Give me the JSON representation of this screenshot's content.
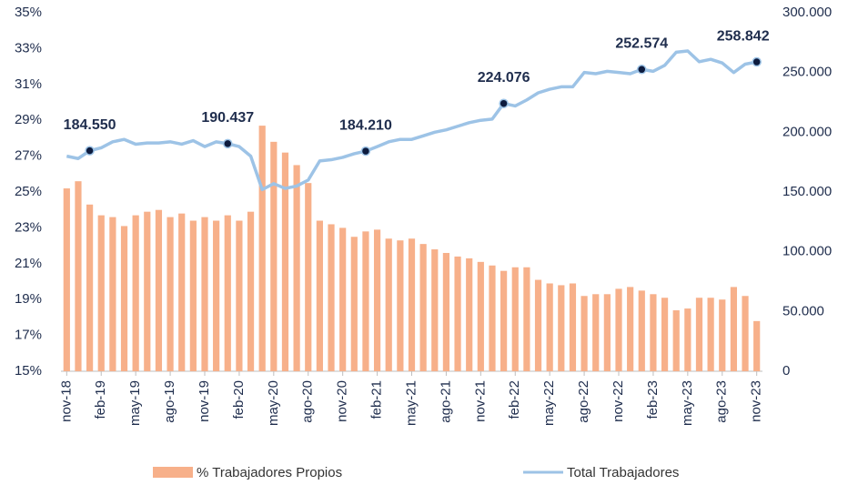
{
  "chart_data": {
    "type": "bar-line",
    "categories": [
      "nov-18",
      null,
      null,
      "feb-19",
      null,
      null,
      "may-19",
      null,
      null,
      "ago-19",
      null,
      null,
      "nov-19",
      null,
      null,
      "feb-20",
      null,
      null,
      "may-20",
      null,
      null,
      "ago-20",
      null,
      null,
      "nov-20",
      null,
      null,
      "feb-21",
      null,
      null,
      "may-21",
      null,
      null,
      "ago-21",
      null,
      null,
      "nov-21",
      null,
      null,
      "feb-22",
      null,
      null,
      "may-22",
      null,
      null,
      "ago-22",
      null,
      null,
      "nov-22",
      null,
      null,
      "feb-23",
      null,
      null,
      "may-23",
      null,
      null,
      "ago-23",
      null,
      null,
      "nov-23"
    ],
    "series": [
      {
        "name": "% Trabajadores Propios",
        "type": "bar",
        "color": "#f7b08a",
        "values": [
          25.2,
          25.6,
          24.3,
          23.7,
          23.6,
          23.1,
          23.7,
          23.9,
          24.0,
          23.6,
          23.8,
          23.4,
          23.6,
          23.4,
          23.7,
          23.4,
          23.9,
          28.7,
          27.8,
          27.2,
          26.5,
          25.5,
          23.4,
          23.2,
          23.0,
          22.5,
          22.8,
          22.9,
          22.4,
          22.3,
          22.4,
          22.1,
          21.8,
          21.6,
          21.4,
          21.3,
          21.1,
          20.9,
          20.6,
          20.8,
          20.8,
          20.1,
          19.9,
          19.8,
          19.9,
          19.2,
          19.3,
          19.3,
          19.6,
          19.7,
          19.5,
          19.3,
          19.1,
          18.4,
          18.5,
          19.1,
          19.1,
          19.0,
          19.7,
          19.2,
          17.8
        ]
      },
      {
        "name": "Total Trabajadores",
        "type": "line",
        "axis": "y2",
        "color": "#9dc3e6",
        "values": [
          180000,
          178000,
          184550,
          187000,
          192000,
          194000,
          190000,
          191000,
          191000,
          192000,
          190000,
          193000,
          188000,
          192000,
          190437,
          188000,
          180000,
          152000,
          157000,
          153000,
          155000,
          160000,
          176000,
          177000,
          179000,
          182000,
          184210,
          188000,
          192000,
          194000,
          194000,
          197000,
          200000,
          202000,
          205000,
          208000,
          210000,
          211000,
          224076,
          222000,
          227000,
          233000,
          236000,
          238000,
          238000,
          250000,
          249000,
          251000,
          250000,
          249000,
          252574,
          251000,
          256000,
          267000,
          268000,
          259000,
          261000,
          258000,
          250000,
          257000,
          258842
        ],
        "value_labels": [
          null,
          null,
          "184.550",
          null,
          null,
          null,
          null,
          null,
          null,
          null,
          null,
          null,
          null,
          null,
          "190.437",
          null,
          null,
          null,
          null,
          null,
          null,
          null,
          null,
          null,
          null,
          null,
          "184.210",
          null,
          null,
          null,
          null,
          null,
          null,
          null,
          null,
          null,
          null,
          null,
          "224.076",
          null,
          null,
          null,
          null,
          null,
          null,
          null,
          null,
          null,
          null,
          null,
          "252.574",
          null,
          null,
          null,
          null,
          null,
          null,
          null,
          null,
          null,
          "258.842"
        ]
      }
    ],
    "ylim": [
      15,
      35
    ],
    "yticks": [
      {
        "value": 15,
        "label": "15%"
      },
      {
        "value": 17,
        "label": "17%"
      },
      {
        "value": 19,
        "label": "19%"
      },
      {
        "value": 21,
        "label": "21%"
      },
      {
        "value": 23,
        "label": "23%"
      },
      {
        "value": 25,
        "label": "25%"
      },
      {
        "value": 27,
        "label": "27%"
      },
      {
        "value": 29,
        "label": "29%"
      },
      {
        "value": 31,
        "label": "31%"
      },
      {
        "value": 33,
        "label": "33%"
      },
      {
        "value": 35,
        "label": "35%"
      }
    ],
    "y2lim": [
      0,
      300000
    ],
    "y2ticks": [
      0,
      {
        "value": 50000,
        "label": "50.000"
      },
      {
        "value": 100000,
        "label": "100.000"
      },
      {
        "value": 150000,
        "label": "150.000"
      },
      {
        "value": 200000,
        "label": "200.000"
      },
      {
        "value": 250000,
        "label": "250.000"
      },
      {
        "value": 300000,
        "label": "300.000"
      }
    ],
    "legend": "bottom"
  }
}
